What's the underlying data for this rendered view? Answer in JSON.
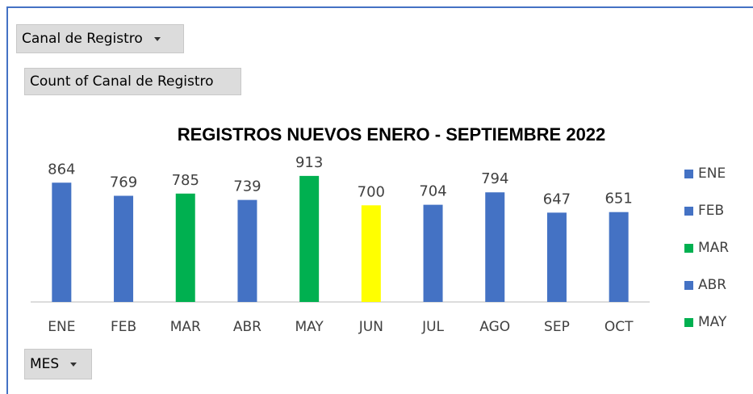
{
  "filter_field": "Canal de Registro",
  "value_field": "Count of Canal de Registro",
  "axis_field": "MES",
  "chart_data": {
    "type": "bar",
    "title": "REGISTROS NUEVOS  ENERO - SEPTIEMBRE 2022",
    "categories": [
      "ENE",
      "FEB",
      "MAR",
      "ABR",
      "MAY",
      "JUN",
      "JUL",
      "AGO",
      "SEP",
      "OCT"
    ],
    "values": [
      864,
      769,
      785,
      739,
      913,
      700,
      704,
      794,
      647,
      651
    ],
    "colors": [
      "#4472c4",
      "#4472c4",
      "#00b050",
      "#4472c4",
      "#00b050",
      "#ffff00",
      "#4472c4",
      "#4472c4",
      "#4472c4",
      "#4472c4"
    ],
    "ylim": [
      0,
      1000
    ],
    "legend": "right"
  }
}
